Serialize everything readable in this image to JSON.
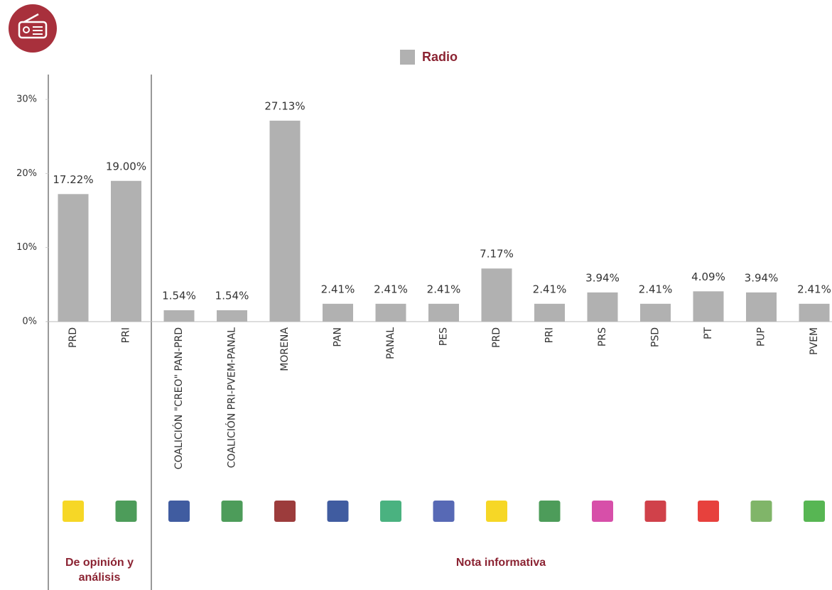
{
  "chart_data": {
    "type": "bar",
    "legend": "Radio",
    "categories": [
      "PRD",
      "PRI",
      "COALICIÓN \"CREO\" PAN-PRD",
      "COALICIÓN PRI-PVEM-PANAL",
      "MORENA",
      "PAN",
      "PANAL",
      "PES",
      "PRD",
      "PRI",
      "PRS",
      "PSD",
      "PT",
      "PUP",
      "PVEM"
    ],
    "values": [
      17.22,
      19.0,
      1.54,
      1.54,
      27.13,
      2.41,
      2.41,
      2.41,
      7.17,
      2.41,
      3.94,
      2.41,
      4.09,
      3.94,
      2.41
    ],
    "value_labels": [
      "17.22%",
      "19.00%",
      "1.54%",
      "1.54%",
      "27.13%",
      "2.41%",
      "2.41%",
      "2.41%",
      "7.17%",
      "2.41%",
      "3.94%",
      "2.41%",
      "4.09%",
      "3.94%",
      "2.41%"
    ],
    "color": "#b1b1b1",
    "ylim": [
      0,
      30
    ],
    "yticks": [
      {
        "value": 0,
        "label": "0%"
      },
      {
        "value": 10,
        "label": "10%"
      },
      {
        "value": 20,
        "label": "20%"
      },
      {
        "value": 30,
        "label": "30%"
      }
    ],
    "group_labels": [
      [
        "De opinión y",
        "análisis"
      ],
      [
        "Nota informativa"
      ]
    ]
  }
}
